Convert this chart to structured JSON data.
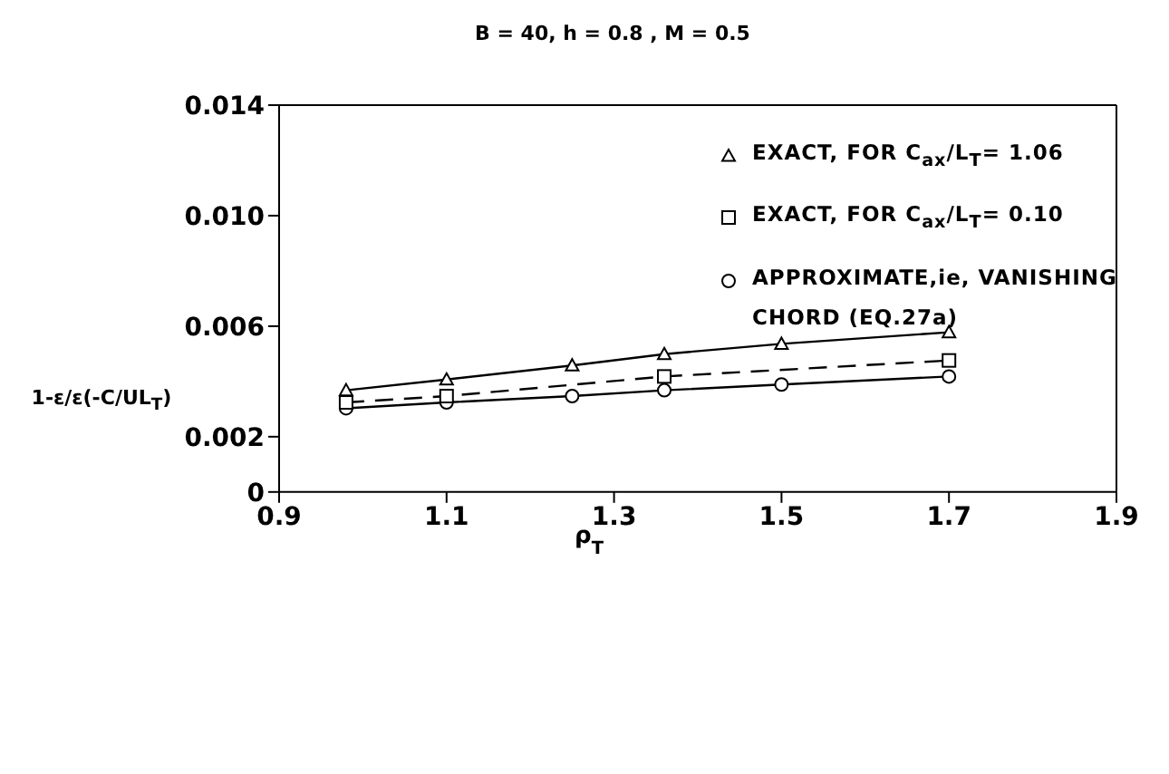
{
  "chart_data": {
    "type": "line",
    "title": "B = 40, h = 0.8 , M = 0.5",
    "xlabel": "ρ$_{T}$",
    "ylabel": "1-ε/ε(-C/UL$_{T}$)",
    "xlim": [
      0.9,
      1.9
    ],
    "xticks": [
      0.9,
      1.1,
      1.3,
      1.5,
      1.7,
      1.9
    ],
    "ylim": [
      0,
      0.014
    ],
    "yticks": [
      0,
      0.002,
      0.006,
      {
        "value": 0.01,
        "label": "0.010"
      },
      0.014
    ],
    "grid": false,
    "legend": "top right",
    "series": [
      {
        "name": "EXACT, FOR C$_{ax}$/L$_{T}$= 1.06",
        "color": "#000000",
        "marker": "triangle",
        "line_style": "solid",
        "x": [
          0.98,
          1.1,
          1.25,
          1.36,
          1.5,
          1.7
        ],
        "values": [
          0.00368,
          0.00407,
          0.00458,
          0.00499,
          0.00536,
          0.00578
        ]
      },
      {
        "name": "EXACT, FOR C$_{ax}$/L$_{T}$= 0.10",
        "color": "#000000",
        "marker": "square",
        "line_style": "dashed",
        "x": [
          0.98,
          1.1,
          1.36,
          1.7
        ],
        "values": [
          0.00324,
          0.00347,
          0.00418,
          0.00476
        ]
      },
      {
        "name": "APPROXIMATE,ie, VANISHING CHORD (EQ.27a)",
        "color": "#000000",
        "marker": "circle",
        "line_style": "solid",
        "x": [
          0.98,
          1.1,
          1.25,
          1.36,
          1.5,
          1.7
        ],
        "values": [
          0.00303,
          0.00324,
          0.00347,
          0.00368,
          0.00389,
          0.00418
        ]
      }
    ]
  }
}
